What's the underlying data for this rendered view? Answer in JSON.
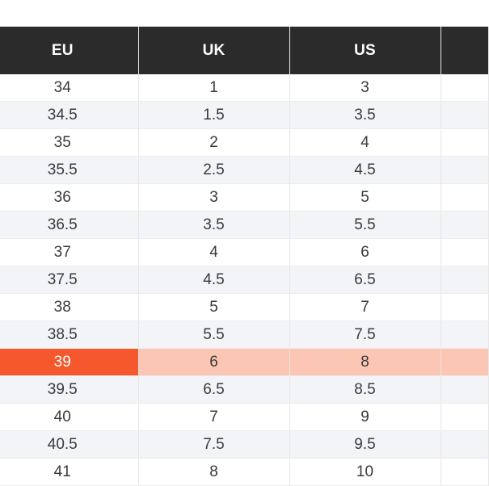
{
  "table": {
    "headers": [
      "EU",
      "UK",
      "US",
      ""
    ],
    "rows": [
      {
        "eu": "34",
        "uk": "1",
        "us": "3",
        "extra": ""
      },
      {
        "eu": "34.5",
        "uk": "1.5",
        "us": "3.5",
        "extra": ""
      },
      {
        "eu": "35",
        "uk": "2",
        "us": "4",
        "extra": ""
      },
      {
        "eu": "35.5",
        "uk": "2.5",
        "us": "4.5",
        "extra": ""
      },
      {
        "eu": "36",
        "uk": "3",
        "us": "5",
        "extra": ""
      },
      {
        "eu": "36.5",
        "uk": "3.5",
        "us": "5.5",
        "extra": ""
      },
      {
        "eu": "37",
        "uk": "4",
        "us": "6",
        "extra": ""
      },
      {
        "eu": "37.5",
        "uk": "4.5",
        "us": "6.5",
        "extra": ""
      },
      {
        "eu": "38",
        "uk": "5",
        "us": "7",
        "extra": ""
      },
      {
        "eu": "38.5",
        "uk": "5.5",
        "us": "7.5",
        "extra": ""
      },
      {
        "eu": "39",
        "uk": "6",
        "us": "8",
        "extra": ""
      },
      {
        "eu": "39.5",
        "uk": "6.5",
        "us": "8.5",
        "extra": ""
      },
      {
        "eu": "40",
        "uk": "7",
        "us": "9",
        "extra": ""
      },
      {
        "eu": "40.5",
        "uk": "7.5",
        "us": "9.5",
        "extra": ""
      },
      {
        "eu": "41",
        "uk": "8",
        "us": "10",
        "extra": ""
      }
    ],
    "highlighted_row_index": 10
  },
  "colors": {
    "header_bg": "#2b2b2b",
    "header_text": "#ffffff",
    "row_alt_bg": "#f3f4f8",
    "highlight_primary": "#f4582c",
    "highlight_secondary": "#fbc6b4"
  }
}
